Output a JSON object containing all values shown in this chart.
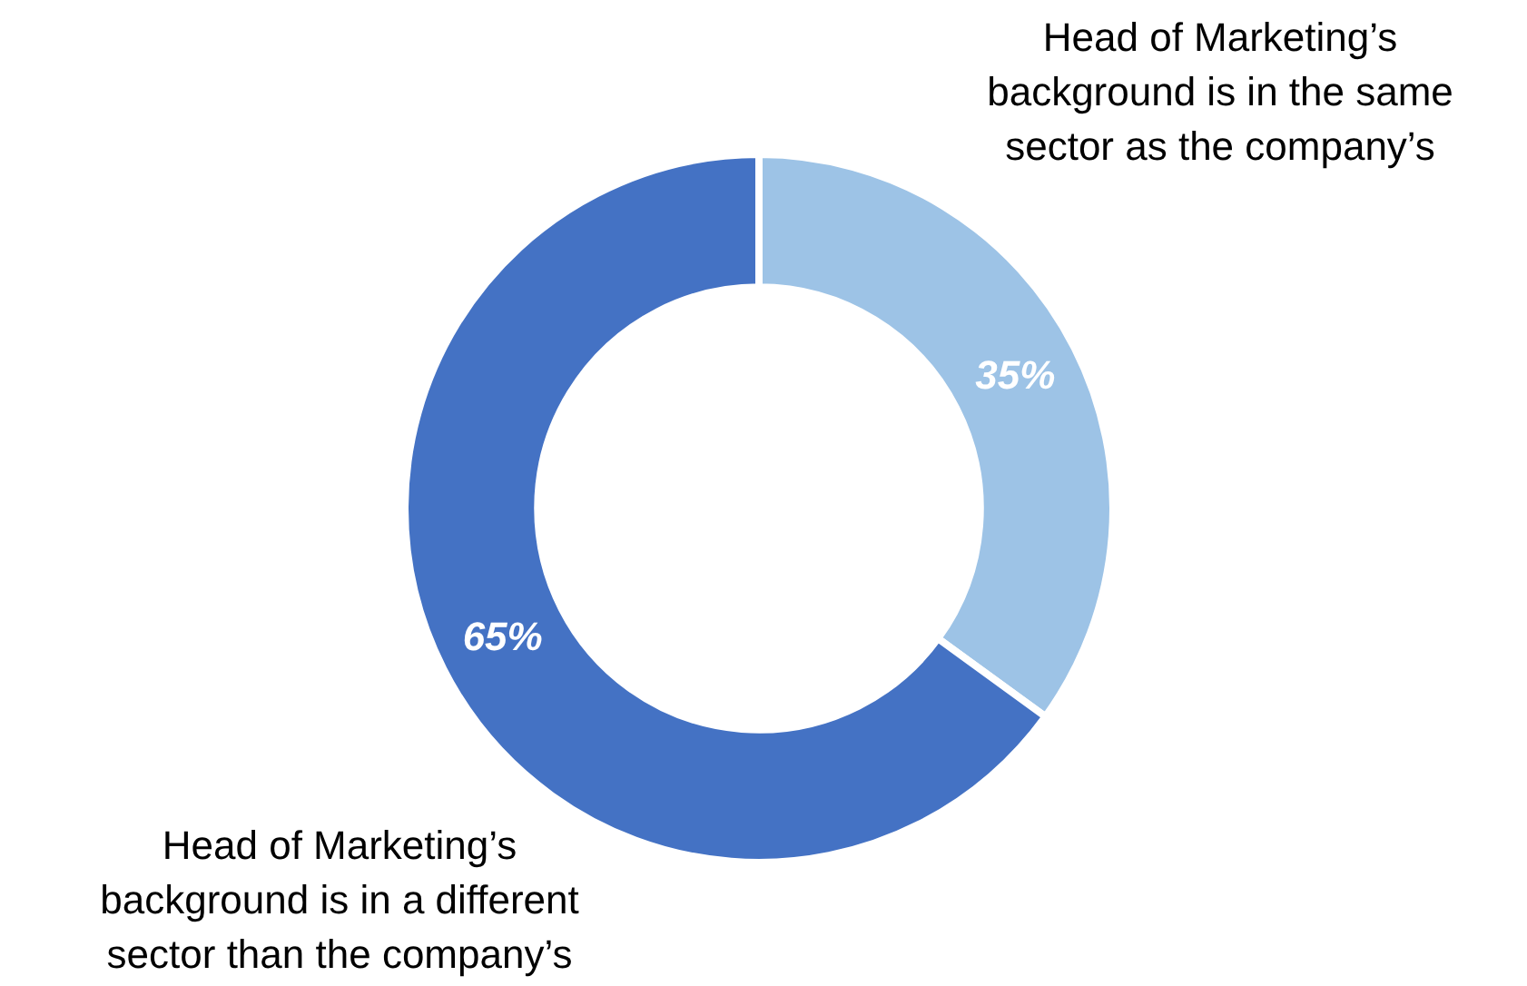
{
  "chart_data": {
    "type": "donut",
    "categories": [
      "Head of Marketing’s background is in the same sector as the company’s",
      "Head of Marketing’s background is in a different sector than the company’s"
    ],
    "values": [
      35,
      65
    ],
    "colors": [
      "#9dc3e6",
      "#4472c4"
    ],
    "value_labels": [
      "35%",
      "65%"
    ],
    "legend": false
  }
}
